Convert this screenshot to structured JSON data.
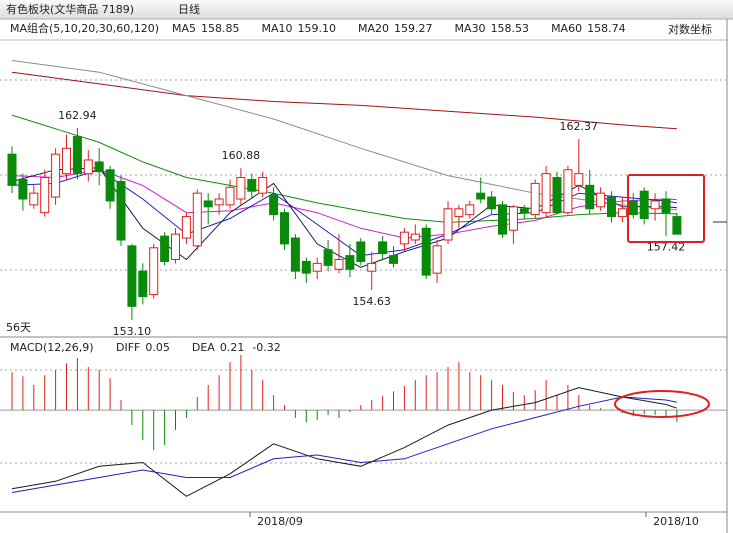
{
  "header": {
    "title": "有色板块(文华商品 7189)",
    "period": "日线",
    "log_toggle": "对数坐标"
  },
  "chart_data": [
    {
      "type": "candlestick",
      "legend_title": "MA组合(5,10,20,30,60,120)",
      "span_label": "56天",
      "up_color": "#e0201a",
      "down_color": "#0a8a0a",
      "open": [
        161.6,
        160.3,
        159.0,
        158.6,
        159.4,
        160.6,
        162.5,
        160.6,
        161.2,
        160.8,
        160.2,
        156.9,
        155.6,
        154.4,
        157.4,
        156.2,
        157.3,
        156.9,
        159.2,
        159.0,
        159.0,
        159.3,
        160.3,
        159.6,
        159.5,
        158.6,
        157.3,
        156.1,
        155.6,
        156.7,
        155.7,
        156.4,
        157.1,
        155.6,
        157.1,
        156.4,
        157.0,
        157.2,
        157.8,
        155.5,
        157.2,
        158.4,
        158.5,
        159.6,
        159.4,
        159.0,
        157.7,
        158.8,
        158.5,
        158.6,
        160.4,
        158.6,
        160.0,
        160.0,
        158.9,
        159.4,
        158.4,
        159.2,
        159.7,
        158.8,
        159.3,
        158.4
      ],
      "high": [
        162.0,
        160.6,
        160.0,
        160.8,
        161.9,
        162.6,
        162.94,
        161.8,
        161.9,
        161.0,
        160.5,
        157.0,
        156.0,
        157.0,
        157.6,
        157.8,
        158.6,
        159.8,
        159.6,
        159.6,
        160.3,
        160.88,
        160.6,
        160.7,
        159.9,
        158.8,
        157.5,
        156.3,
        156.3,
        157.2,
        157.5,
        157.0,
        157.3,
        156.6,
        157.4,
        156.9,
        157.8,
        158.0,
        158.0,
        157.2,
        159.2,
        159.0,
        159.2,
        160.4,
        159.7,
        159.2,
        159.0,
        159.0,
        160.3,
        161.0,
        160.7,
        161.0,
        162.37,
        160.8,
        159.9,
        159.7,
        159.4,
        159.6,
        159.9,
        159.6,
        159.7,
        158.6
      ],
      "low": [
        159.6,
        158.7,
        158.8,
        158.4,
        159.0,
        160.3,
        160.3,
        160.2,
        160.0,
        158.8,
        156.9,
        153.1,
        153.9,
        154.2,
        155.9,
        156.0,
        157.0,
        156.7,
        158.0,
        158.5,
        158.8,
        159.0,
        159.3,
        159.4,
        158.2,
        156.7,
        155.2,
        155.0,
        155.2,
        155.6,
        155.5,
        155.3,
        155.9,
        154.63,
        156.2,
        155.8,
        156.6,
        157.0,
        155.2,
        155.0,
        157.0,
        157.8,
        158.3,
        159.1,
        158.5,
        157.3,
        157.0,
        158.3,
        158.3,
        158.4,
        158.5,
        158.5,
        159.7,
        158.5,
        158.7,
        158.1,
        158.1,
        158.3,
        158.0,
        158.2,
        157.42,
        157.5
      ],
      "close": [
        160.0,
        159.3,
        159.6,
        160.4,
        161.6,
        161.9,
        160.6,
        161.3,
        160.7,
        159.2,
        157.2,
        153.8,
        154.3,
        156.8,
        156.1,
        157.5,
        158.4,
        159.6,
        158.9,
        159.3,
        159.9,
        160.4,
        159.7,
        160.4,
        158.5,
        157.0,
        155.6,
        155.5,
        156.0,
        155.9,
        156.2,
        155.7,
        156.1,
        156.0,
        156.5,
        156.0,
        157.6,
        157.5,
        155.4,
        156.9,
        158.8,
        158.8,
        159.0,
        159.3,
        158.8,
        157.5,
        158.9,
        158.6,
        160.1,
        160.6,
        158.6,
        160.8,
        160.6,
        158.8,
        159.6,
        158.4,
        158.8,
        158.5,
        158.3,
        159.2,
        158.6,
        157.5
      ],
      "high_labels": [
        162.94,
        160.88,
        162.37
      ],
      "low_labels": [
        {
          "value": 153.1,
          "label": "153.10"
        },
        154.63,
        157.42
      ],
      "ylim": [
        152.33,
        167.45
      ],
      "series": [
        {
          "color": "#a01414",
          "x": [
            0,
            8,
            16,
            24,
            32,
            40,
            48,
            56,
            61
          ],
          "values": [
            165.8,
            165.2,
            164.6,
            164.3,
            164.1,
            163.8,
            163.5,
            163.1,
            162.9
          ]
        },
        {
          "name": "MA60",
          "color": "#8c8c8c",
          "legend_value": 158.74,
          "x": [
            0,
            8,
            16,
            24,
            32,
            40,
            48,
            56,
            61
          ],
          "values": [
            166.4,
            165.8,
            164.6,
            163.4,
            161.9,
            160.5,
            159.6,
            159.0,
            158.74
          ]
        },
        {
          "name": "MA30",
          "color": "#109010",
          "legend_value": 158.53,
          "x": [
            0,
            4,
            8,
            12,
            16,
            20,
            24,
            28,
            32,
            36,
            40,
            44,
            48,
            52,
            56,
            60,
            61
          ],
          "values": [
            163.6,
            162.9,
            162.2,
            161.2,
            160.4,
            160.0,
            159.6,
            159.1,
            158.7,
            158.3,
            158.1,
            158.2,
            158.3,
            158.5,
            158.6,
            158.55,
            158.53
          ]
        },
        {
          "name": "MA20",
          "color": "#d020d0",
          "legend_value": 159.27,
          "x": [
            0,
            4,
            8,
            12,
            16,
            20,
            24,
            28,
            32,
            36,
            40,
            44,
            48,
            52,
            56,
            60,
            61
          ],
          "values": [
            160.5,
            160.4,
            160.8,
            160.0,
            158.6,
            158.7,
            159.1,
            158.6,
            157.8,
            157.3,
            157.5,
            157.9,
            158.2,
            158.9,
            159.2,
            159.3,
            159.27
          ]
        },
        {
          "name": "MA10",
          "color": "#2020c0",
          "legend_value": {
            "value": 159.1,
            "label": "159.10"
          },
          "x": [
            0,
            4,
            8,
            12,
            16,
            20,
            24,
            28,
            32,
            36,
            40,
            44,
            48,
            52,
            56,
            60,
            61
          ],
          "values": [
            160.0,
            160.1,
            160.8,
            159.3,
            157.5,
            158.3,
            159.6,
            158.0,
            156.4,
            156.7,
            157.5,
            158.5,
            158.6,
            159.6,
            159.4,
            159.2,
            159.1
          ]
        },
        {
          "name": "MA5",
          "color": "#1a1a50",
          "legend_value": 158.85,
          "x": [
            0,
            4,
            8,
            12,
            16,
            20,
            24,
            28,
            32,
            36,
            40,
            44,
            48,
            52,
            56,
            60,
            61
          ],
          "values": [
            160.2,
            160.8,
            160.9,
            157.8,
            156.2,
            158.6,
            160.1,
            157.0,
            155.8,
            156.6,
            157.3,
            159.0,
            158.8,
            160.0,
            158.9,
            158.9,
            158.85
          ]
        }
      ]
    },
    {
      "type": "macd",
      "title": "MACD(12,26,9)",
      "up_color": "#e0201a",
      "down_color": "#0a8a0a",
      "histogram": [
        1.01,
        0.9,
        0.67,
        0.93,
        1.07,
        1.25,
        1.39,
        1.15,
        1.07,
        0.85,
        0.27,
        -0.4,
        -0.8,
        -1.07,
        -0.93,
        -0.53,
        -0.21,
        0.35,
        0.67,
        0.93,
        1.28,
        1.47,
        1.07,
        0.8,
        0.4,
        0.13,
        -0.21,
        -0.32,
        -0.27,
        -0.13,
        -0.21,
        -0.05,
        0.13,
        0.27,
        0.37,
        0.5,
        0.64,
        0.8,
        0.93,
        1.01,
        1.15,
        1.28,
        1.01,
        0.93,
        0.8,
        0.67,
        0.48,
        0.4,
        0.53,
        0.8,
        0.4,
        0.67,
        0.4,
        0.13,
        0.05,
        0.02,
        -0.08,
        -0.16,
        -0.11,
        -0.13,
        -0.2,
        -0.32
      ],
      "ylim": [
        -2.8,
        1.47
      ],
      "series": [
        {
          "name": "DIFF",
          "color": "#1a1a1a",
          "legend_value": 0.05,
          "x": [
            0,
            4,
            8,
            12,
            16,
            20,
            24,
            28,
            32,
            36,
            40,
            44,
            48,
            52,
            56,
            60,
            61
          ],
          "values": [
            -2.1,
            -1.9,
            -1.5,
            -1.4,
            -2.3,
            -1.7,
            -0.9,
            -1.3,
            -1.5,
            -1.0,
            -0.4,
            0.0,
            0.2,
            0.6,
            0.35,
            0.15,
            0.05
          ]
        },
        {
          "name": "DEA",
          "color": "#2020c0",
          "legend_value": 0.21,
          "x": [
            0,
            4,
            8,
            12,
            16,
            20,
            24,
            28,
            32,
            36,
            40,
            44,
            48,
            52,
            56,
            60,
            61
          ],
          "values": [
            -2.2,
            -2.0,
            -1.8,
            -1.6,
            -1.8,
            -1.8,
            -1.3,
            -1.2,
            -1.4,
            -1.3,
            -0.9,
            -0.5,
            -0.2,
            0.1,
            0.35,
            0.27,
            0.21
          ]
        }
      ],
      "x_labels": [
        "2018/09",
        "2018/10"
      ]
    }
  ]
}
